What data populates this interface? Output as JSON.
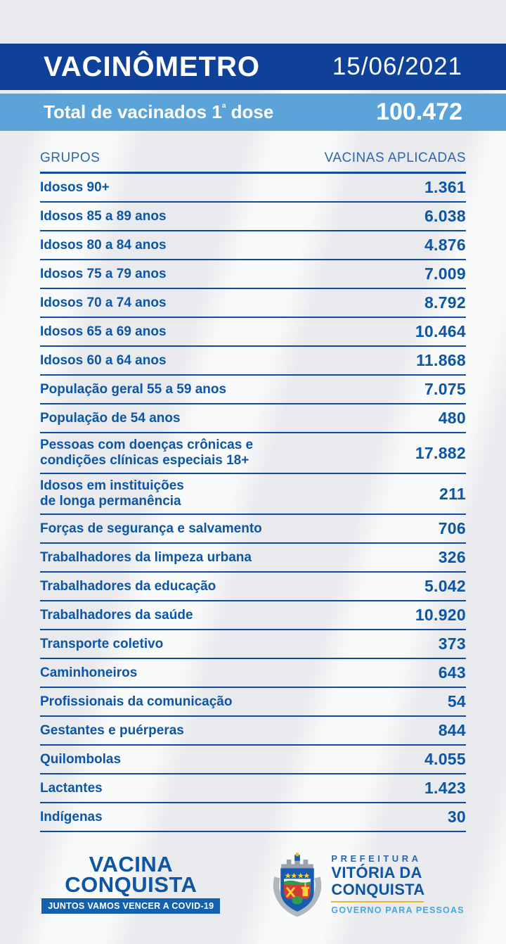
{
  "header": {
    "title": "VACINÔMETRO",
    "date": "15/06/2021"
  },
  "summary": {
    "label": "Total de vacinados 1ª dose",
    "value": "100.472"
  },
  "table": {
    "col_groups": "GRUPOS",
    "col_values": "VACINAS APLICADAS",
    "rows": [
      {
        "label": "Idosos 90+",
        "value": "1.361"
      },
      {
        "label": "Idosos 85 a 89 anos",
        "value": "6.038"
      },
      {
        "label": "Idosos 80 a 84 anos",
        "value": "4.876"
      },
      {
        "label": "Idosos 75 a 79 anos",
        "value": "7.009"
      },
      {
        "label": "Idosos 70 a 74 anos",
        "value": "8.792"
      },
      {
        "label": "Idosos 65 a 69 anos",
        "value": "10.464"
      },
      {
        "label": "Idosos 60 a 64 anos",
        "value": "11.868"
      },
      {
        "label": "População geral 55 a 59 anos",
        "value": "7.075"
      },
      {
        "label": "População de 54 anos",
        "value": "480"
      },
      {
        "label": "Pessoas com doenças crônicas e\ncondições clínicas especiais 18+",
        "value": "17.882"
      },
      {
        "label": "Idosos em instituições\nde longa permanência",
        "value": "211"
      },
      {
        "label": "Forças de segurança e salvamento",
        "value": "706"
      },
      {
        "label": "Trabalhadores da limpeza urbana",
        "value": "326"
      },
      {
        "label": "Trabalhadores da educação",
        "value": "5.042"
      },
      {
        "label": "Trabalhadores da saúde",
        "value": "10.920"
      },
      {
        "label": "Transporte coletivo",
        "value": "373"
      },
      {
        "label": "Caminhoneiros",
        "value": "643"
      },
      {
        "label": "Profissionais da comunicação",
        "value": "54"
      },
      {
        "label": "Gestantes e puérperas",
        "value": "844"
      },
      {
        "label": "Quilombolas",
        "value": "4.055"
      },
      {
        "label": "Lactantes",
        "value": "1.423"
      },
      {
        "label": "Indígenas",
        "value": "30"
      }
    ]
  },
  "footer": {
    "campaign": {
      "name_line1": "VACINA",
      "name_line2": "CONQUISTA",
      "tagline": "JUNTOS VAMOS VENCER A COVID-19"
    },
    "government": {
      "top": "PREFEITURA",
      "name_line1": "VITÓRIA DA",
      "name_line2": "CONQUISTA",
      "tagline": "GOVERNO PARA PESSOAS",
      "crest_icon": "vitoria-da-conquista-coat-of-arms"
    }
  },
  "colors": {
    "header_bg": "#0e4197",
    "band_bg": "#5aa4d9",
    "text_blue": "#0d55a5",
    "divider": "#0f4c9e",
    "col_header": "#2b66ae",
    "footer_dark": "#0e55a6",
    "footer_light": "#41a9e1",
    "box_bg": "#1560ac",
    "gold": "#e8b931",
    "bg_base": "#e8eaed"
  },
  "chart_data": {
    "type": "table",
    "title": "VACINÔMETRO",
    "date": "15/06/2021",
    "total_label": "Total de vacinados 1ª dose",
    "total_value": 100472,
    "columns": [
      "GRUPOS",
      "VACINAS APLICADAS"
    ],
    "categories": [
      "Idosos 90+",
      "Idosos 85 a 89 anos",
      "Idosos 80 a 84 anos",
      "Idosos 75 a 79 anos",
      "Idosos 70 a 74 anos",
      "Idosos 65 a 69 anos",
      "Idosos 60 a 64 anos",
      "População geral 55 a 59 anos",
      "População de 54 anos",
      "Pessoas com doenças crônicas e condições clínicas especiais 18+",
      "Idosos em instituições de longa permanência",
      "Forças de segurança e salvamento",
      "Trabalhadores da limpeza urbana",
      "Trabalhadores da educação",
      "Trabalhadores da saúde",
      "Transporte coletivo",
      "Caminhoneiros",
      "Profissionais da comunicação",
      "Gestantes e puérperas",
      "Quilombolas",
      "Lactantes",
      "Indígenas"
    ],
    "values": [
      1361,
      6038,
      4876,
      7009,
      8792,
      10464,
      11868,
      7075,
      480,
      17882,
      211,
      706,
      326,
      5042,
      10920,
      373,
      643,
      54,
      844,
      4055,
      1423,
      30
    ]
  }
}
